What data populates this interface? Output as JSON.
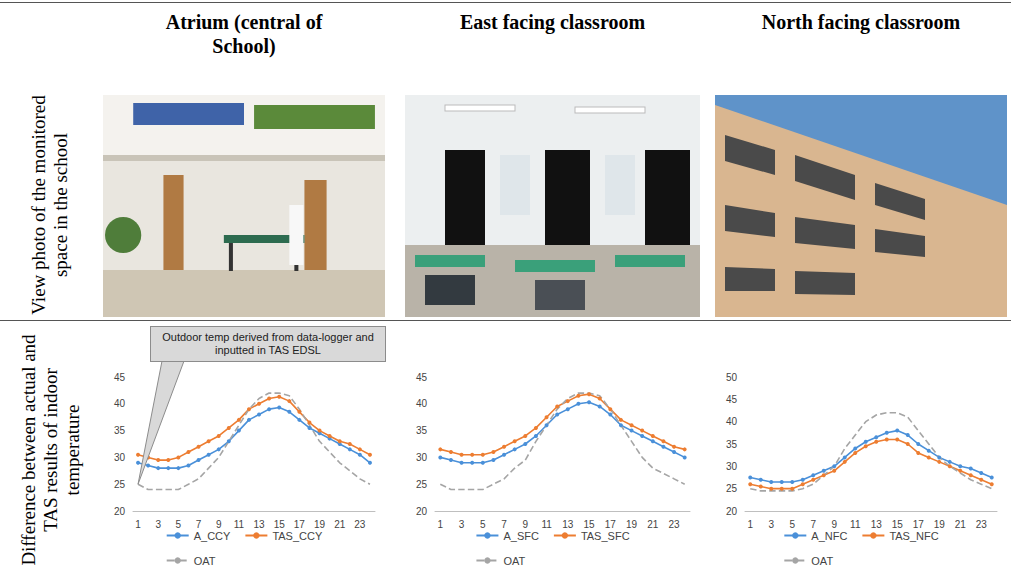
{
  "table": {
    "columns": [
      "Atrium (central of School)",
      "East facing classroom",
      "North facing classroom"
    ],
    "row_labels": [
      "View photo of the monitored space in the school",
      "Difference between actual and TAS results of indoor temperature"
    ]
  },
  "chart_data": [
    {
      "type": "line",
      "categories": [
        1,
        null,
        3,
        null,
        5,
        null,
        7,
        null,
        9,
        null,
        11,
        null,
        13,
        null,
        15,
        null,
        17,
        null,
        19,
        null,
        21,
        null,
        23,
        null
      ],
      "series": [
        {
          "name": "A_CCY",
          "color": "#4a90d9",
          "marker": "circle",
          "line_style": "solid",
          "values": [
            29,
            28.5,
            28,
            28,
            28,
            28.5,
            29.5,
            30.5,
            31.5,
            33,
            35,
            37,
            38,
            39,
            39.3,
            38.5,
            37,
            35.5,
            34.5,
            33.5,
            32.5,
            31.5,
            30.5,
            29
          ]
        },
        {
          "name": "TAS_CCY",
          "color": "#ed7d31",
          "marker": "circle",
          "line_style": "solid",
          "values": [
            30.5,
            30,
            29.5,
            29.5,
            30,
            31,
            32,
            33,
            34,
            35.5,
            37,
            39,
            40,
            41,
            41.3,
            40.5,
            38.5,
            36.5,
            35,
            34,
            33,
            32.5,
            31.5,
            30.5
          ]
        },
        {
          "name": "OAT",
          "color": "#a5a5a5",
          "marker": "none",
          "line_style": "dashed",
          "values": [
            25,
            24,
            24,
            24,
            24,
            25,
            26,
            28,
            30,
            33,
            36,
            39,
            41,
            42,
            42,
            41.5,
            39,
            36,
            33,
            31,
            29,
            27.5,
            26,
            25
          ]
        }
      ],
      "ylim": [
        20,
        45
      ],
      "yticks": [
        20,
        25,
        30,
        35,
        40,
        45
      ],
      "grid": false,
      "legend": "bottom",
      "annotations": [
        {
          "text": "Outdoor temp derived from data-logger and inputted in TAS EDSL",
          "x": 1,
          "y": 25
        }
      ]
    },
    {
      "type": "line",
      "categories": [
        1,
        null,
        3,
        null,
        5,
        null,
        7,
        null,
        9,
        null,
        11,
        null,
        13,
        null,
        15,
        null,
        17,
        null,
        19,
        null,
        21,
        null,
        23,
        null
      ],
      "series": [
        {
          "name": "A_SFC",
          "color": "#4a90d9",
          "marker": "circle",
          "line_style": "solid",
          "values": [
            30,
            29.5,
            29,
            29,
            29,
            29.5,
            30.5,
            31.5,
            32.5,
            34,
            36,
            38,
            39,
            40,
            40.3,
            39.5,
            38,
            36,
            35,
            34,
            33,
            32,
            31,
            30
          ]
        },
        {
          "name": "TAS_SFC",
          "color": "#ed7d31",
          "marker": "circle",
          "line_style": "solid",
          "values": [
            31.5,
            31,
            30.5,
            30.5,
            30.5,
            31,
            32,
            33,
            34,
            35.5,
            37.5,
            39.5,
            40.5,
            41.5,
            41.8,
            41,
            39,
            37,
            36,
            35,
            34,
            33,
            32,
            31.5
          ]
        },
        {
          "name": "OAT",
          "color": "#a5a5a5",
          "marker": "none",
          "line_style": "dashed",
          "values": [
            25,
            24,
            24,
            24,
            24,
            25,
            26,
            28,
            29.5,
            33,
            36,
            39,
            41,
            42,
            42,
            41.5,
            39,
            36,
            33,
            30,
            28,
            27,
            26,
            25
          ]
        }
      ],
      "ylim": [
        20,
        45
      ],
      "yticks": [
        20,
        25,
        30,
        35,
        40,
        45
      ],
      "grid": false,
      "legend": "bottom"
    },
    {
      "type": "line",
      "categories": [
        1,
        null,
        3,
        null,
        5,
        null,
        7,
        null,
        9,
        null,
        11,
        null,
        13,
        null,
        15,
        null,
        17,
        null,
        19,
        null,
        21,
        null,
        23,
        null
      ],
      "series": [
        {
          "name": "A_NFC",
          "color": "#4a90d9",
          "marker": "circle",
          "line_style": "solid",
          "values": [
            27.5,
            27,
            26.5,
            26.5,
            26.5,
            27,
            28,
            29,
            30,
            32,
            34,
            35.5,
            36.5,
            37.5,
            38,
            37,
            35,
            33.5,
            32,
            31,
            30,
            29.5,
            28.5,
            27.5
          ]
        },
        {
          "name": "TAS_NFC",
          "color": "#ed7d31",
          "marker": "circle",
          "line_style": "solid",
          "values": [
            26,
            25.5,
            25,
            25,
            25,
            26,
            27,
            28,
            29,
            31,
            33,
            34.5,
            35.5,
            36,
            36,
            35,
            33,
            32,
            31,
            30,
            29,
            28,
            27,
            26
          ]
        },
        {
          "name": "OAT",
          "color": "#a5a5a5",
          "marker": "none",
          "line_style": "dashed",
          "values": [
            25,
            24.5,
            24.5,
            24.5,
            24.5,
            25,
            26,
            28,
            30,
            34,
            37,
            40,
            41.5,
            42,
            42,
            41,
            38,
            35,
            32,
            30,
            28.5,
            27,
            26,
            25
          ]
        }
      ],
      "ylim": [
        20,
        50
      ],
      "yticks": [
        20,
        25,
        30,
        35,
        40,
        45,
        50
      ],
      "grid": false,
      "legend": "bottom"
    }
  ]
}
